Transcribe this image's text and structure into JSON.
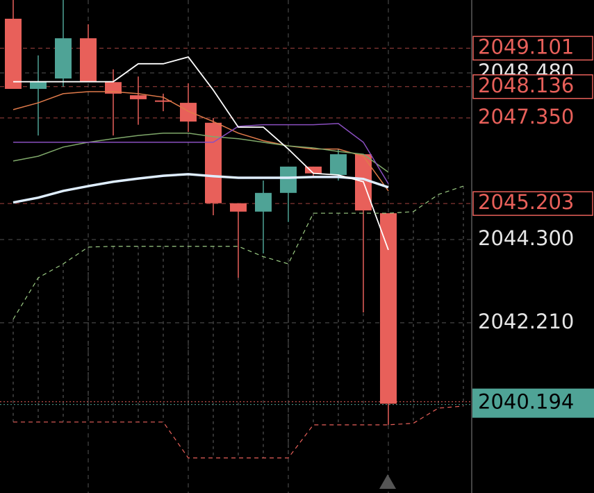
{
  "chart_data": {
    "type": "candlestick",
    "categories": [
      null,
      null,
      null,
      null,
      null,
      null,
      null,
      null,
      null,
      null,
      null,
      null,
      null,
      null,
      null,
      null,
      null,
      null,
      null
    ],
    "open": [
      2049.84,
      2048.08,
      2048.34,
      2049.35,
      2048.25,
      2047.92,
      2047.79,
      2047.73,
      2047.23,
      2045.21,
      2045.0,
      2045.47,
      2046.13,
      2045.92,
      2046.44,
      2044.96,
      null,
      null,
      null
    ],
    "high": [
      2050.31,
      2048.92,
      2050.31,
      2049.7,
      2048.57,
      2048.39,
      2047.96,
      2048.22,
      2047.35,
      2045.21,
      2045.78,
      2046.13,
      2046.13,
      2046.57,
      2046.44,
      2044.96,
      null,
      null,
      null
    ],
    "low": [
      2048.08,
      2046.91,
      2048.13,
      2048.25,
      2046.91,
      2047.18,
      2047.52,
      2047.0,
      2044.91,
      2043.34,
      2043.95,
      2044.74,
      2045.87,
      2045.78,
      2042.47,
      2039.65,
      null,
      null,
      null
    ],
    "close": [
      2048.08,
      2048.25,
      2049.35,
      2048.25,
      2047.96,
      2047.82,
      2047.78,
      2047.26,
      2045.21,
      2045.0,
      2045.47,
      2046.13,
      2045.96,
      2046.44,
      2045.03,
      2040.18,
      null,
      null,
      null
    ],
    "up_color": "#4fa396",
    "down_color": "#e8605a",
    "series": [
      {
        "color": "#e07a4a",
        "width": 1.5,
        "style": "solid",
        "values": [
          2047.56,
          2047.73,
          2047.96,
          2048.01,
          2048.01,
          2047.96,
          2047.87,
          2047.52,
          2047.26,
          2046.97,
          2046.78,
          2046.65,
          2046.57,
          2046.57,
          2046.39,
          2045.52,
          null,
          null,
          null
        ]
      },
      {
        "color": "#7fa86a",
        "width": 1.5,
        "style": "solid",
        "values": [
          2046.27,
          2046.39,
          2046.62,
          2046.74,
          2046.83,
          2046.91,
          2046.97,
          2046.97,
          2046.88,
          2046.83,
          2046.74,
          2046.65,
          2046.6,
          2046.51,
          2046.44,
          2045.99,
          null,
          null,
          null
        ]
      },
      {
        "color": "#8a4fc0",
        "width": 1.5,
        "style": "solid",
        "values": [
          2046.74,
          2046.74,
          2046.74,
          2046.74,
          2046.74,
          2046.74,
          2046.74,
          2046.74,
          2046.74,
          2047.14,
          2047.18,
          2047.18,
          2047.18,
          2047.21,
          2046.74,
          2045.7,
          null,
          null,
          null
        ]
      },
      {
        "color": "#dfeeff",
        "width": 3.5,
        "style": "solid",
        "values": [
          2045.23,
          2045.35,
          2045.52,
          2045.64,
          2045.75,
          2045.83,
          2045.9,
          2045.94,
          2045.89,
          2045.85,
          2045.85,
          2045.85,
          2045.87,
          2045.87,
          2045.82,
          2045.61,
          null,
          null,
          null
        ]
      },
      {
        "color": "#ffffff",
        "width": 1.8,
        "style": "solid",
        "values": [
          2048.26,
          2048.26,
          2048.26,
          2048.26,
          2048.26,
          2048.71,
          2048.71,
          2048.88,
          2048.05,
          2047.12,
          2047.12,
          2046.57,
          2045.96,
          2045.92,
          2045.75,
          2044.04,
          null,
          null,
          null
        ]
      },
      {
        "color": "#9ccc84",
        "width": 1.2,
        "style": "dashed",
        "values": [
          2042.3,
          2043.34,
          2043.69,
          2044.11,
          2044.13,
          2044.13,
          2044.13,
          2044.13,
          2044.13,
          2044.13,
          2043.87,
          2043.69,
          2044.96,
          2044.96,
          2044.96,
          2044.96,
          2045.0,
          2045.43,
          2045.64
        ]
      },
      {
        "color": "#e8605a",
        "width": 1.2,
        "style": "dashed",
        "values": [
          2039.72,
          2039.72,
          2039.72,
          2039.72,
          2039.72,
          2039.72,
          2039.72,
          2038.82,
          2038.82,
          2038.82,
          2038.82,
          2038.82,
          2039.65,
          2039.65,
          2039.65,
          2039.65,
          2039.69,
          2040.07,
          2040.12
        ]
      }
    ],
    "ylim": [
      2037.94,
      2050.31
    ],
    "yticks": [
      {
        "value": 2048.48,
        "label": "2048.480"
      },
      {
        "value": 2044.3,
        "label": "2044.300"
      },
      {
        "value": 2042.21,
        "label": "2042.210"
      }
    ],
    "price_lines": [
      2049.101,
      2048.136,
      {
        "value": 2047.35,
        "label": "2047.350"
      },
      2045.203
    ],
    "price_line_boxed": [
      true,
      true,
      false,
      true
    ],
    "price_line_color": "#e8605a",
    "current_price": 2040.194,
    "current_price_color": "#4fa396",
    "grid": true
  }
}
